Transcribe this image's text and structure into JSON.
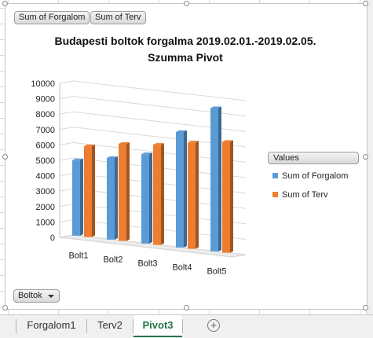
{
  "pivot_buttons": {
    "forgalom": "Sum of Forgalom",
    "terv": "Sum of Terv"
  },
  "legend": {
    "header": "Values",
    "items": [
      {
        "label": "Sum of Forgalom",
        "color": "#5b9bd5"
      },
      {
        "label": "Sum of Terv",
        "color": "#ed7d31"
      }
    ]
  },
  "axis_field_button": "Boltok",
  "sheet_tabs": [
    {
      "label": "Forgalom1",
      "active": false
    },
    {
      "label": "Terv2",
      "active": false
    },
    {
      "label": "Pivot3",
      "active": true
    }
  ],
  "add_sheet_icon": "plus-circle-icon",
  "chart_data": {
    "type": "bar",
    "title_line1": "Budapesti boltok forgalma 2019.02.01.-2019.02.05.",
    "title_line2": "Szumma Pivot",
    "categories": [
      "Bolt1",
      "Bolt2",
      "Bolt3",
      "Bolt4",
      "Bolt5"
    ],
    "series": [
      {
        "name": "Sum of Forgalom",
        "values": [
          4900,
          5300,
          5800,
          7500,
          9300
        ]
      },
      {
        "name": "Sum of Terv",
        "values": [
          5900,
          6300,
          6500,
          6900,
          7200
        ]
      }
    ],
    "ylim": [
      0,
      10000
    ],
    "yticks": [
      0,
      1000,
      2000,
      3000,
      4000,
      5000,
      6000,
      7000,
      8000,
      9000,
      10000
    ],
    "ytick_labels": [
      "0",
      "1000",
      "2000",
      "3000",
      "4000",
      "5000",
      "6000",
      "7000",
      "8000",
      "9000",
      "10000"
    ],
    "grid": true,
    "legend_position": "right",
    "style": "3d-clustered-column"
  }
}
